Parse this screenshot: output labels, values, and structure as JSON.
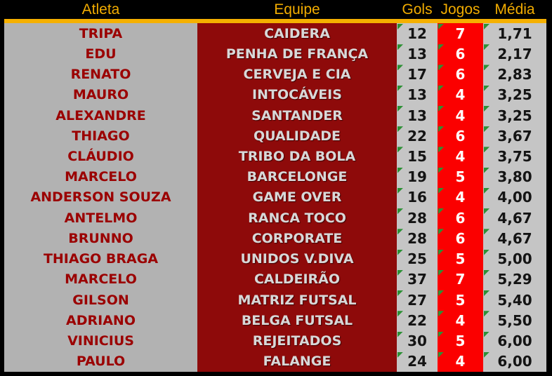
{
  "table": {
    "headers": [
      {
        "key": "atleta",
        "label": "Atleta"
      },
      {
        "key": "equipe",
        "label": "Equipe"
      },
      {
        "key": "gols",
        "label": "Gols"
      },
      {
        "key": "jogos",
        "label": "Jogos"
      },
      {
        "key": "media",
        "label": "Média"
      }
    ],
    "rows": [
      {
        "atleta": "TRIPA",
        "equipe": "CAIDERA",
        "gols": "12",
        "jogos": "7",
        "media": "1,71"
      },
      {
        "atleta": "EDU",
        "equipe": "PENHA DE FRANÇA",
        "gols": "13",
        "jogos": "6",
        "media": "2,17"
      },
      {
        "atleta": "RENATO",
        "equipe": "CERVEJA E CIA",
        "gols": "17",
        "jogos": "6",
        "media": "2,83"
      },
      {
        "atleta": "MAURO",
        "equipe": "INTOCÁVEIS",
        "gols": "13",
        "jogos": "4",
        "media": "3,25"
      },
      {
        "atleta": "ALEXANDRE",
        "equipe": "SANTANDER",
        "gols": "13",
        "jogos": "4",
        "media": "3,25"
      },
      {
        "atleta": "THIAGO",
        "equipe": "QUALIDADE",
        "gols": "22",
        "jogos": "6",
        "media": "3,67"
      },
      {
        "atleta": "CLÁUDIO",
        "equipe": "TRIBO DA BOLA",
        "gols": "15",
        "jogos": "4",
        "media": "3,75"
      },
      {
        "atleta": "MARCELO",
        "equipe": "BARCELONGE",
        "gols": "19",
        "jogos": "5",
        "media": "3,80"
      },
      {
        "atleta": "ANDERSON SOUZA",
        "equipe": "GAME OVER",
        "gols": "16",
        "jogos": "4",
        "media": "4,00"
      },
      {
        "atleta": "ANTELMO",
        "equipe": "RANCA TOCO",
        "gols": "28",
        "jogos": "6",
        "media": "4,67"
      },
      {
        "atleta": "BRUNNO",
        "equipe": "CORPORATE",
        "gols": "28",
        "jogos": "6",
        "media": "4,67"
      },
      {
        "atleta": "THIAGO BRAGA",
        "equipe": "UNIDOS V.DIVA",
        "gols": "25",
        "jogos": "5",
        "media": "5,00"
      },
      {
        "atleta": "MARCELO",
        "equipe": "CALDEIRÃO",
        "gols": "37",
        "jogos": "7",
        "media": "5,29"
      },
      {
        "atleta": "GILSON",
        "equipe": "MATRIZ FUTSAL",
        "gols": "27",
        "jogos": "5",
        "media": "5,40"
      },
      {
        "atleta": "ADRIANO",
        "equipe": "BELGA FUTSAL",
        "gols": "22",
        "jogos": "4",
        "media": "5,50"
      },
      {
        "atleta": "VINICIUS",
        "equipe": "REJEITADOS",
        "gols": "30",
        "jogos": "5",
        "media": "6,00"
      },
      {
        "atleta": "PAULO",
        "equipe": "FALANGE",
        "gols": "24",
        "jogos": "4",
        "media": "6,00"
      }
    ]
  },
  "icons": {
    "cell_indicator": "error-indicator-triangle"
  },
  "colors": {
    "frame": "#000000",
    "header_bg": "#000000",
    "header_text": "#f2ac00",
    "divider": "#f5b000",
    "atleta_bg": "#b2b2b2",
    "atleta_text": "#9b0000",
    "equipe_bg": "#8e0a0a",
    "equipe_text": "#d8d8d8",
    "number_bg": "#c5c5c5",
    "number_text": "#141414",
    "jogos_bg": "#fb0000",
    "jogos_text": "#ffffff",
    "indicator_green": "#2c9035"
  }
}
